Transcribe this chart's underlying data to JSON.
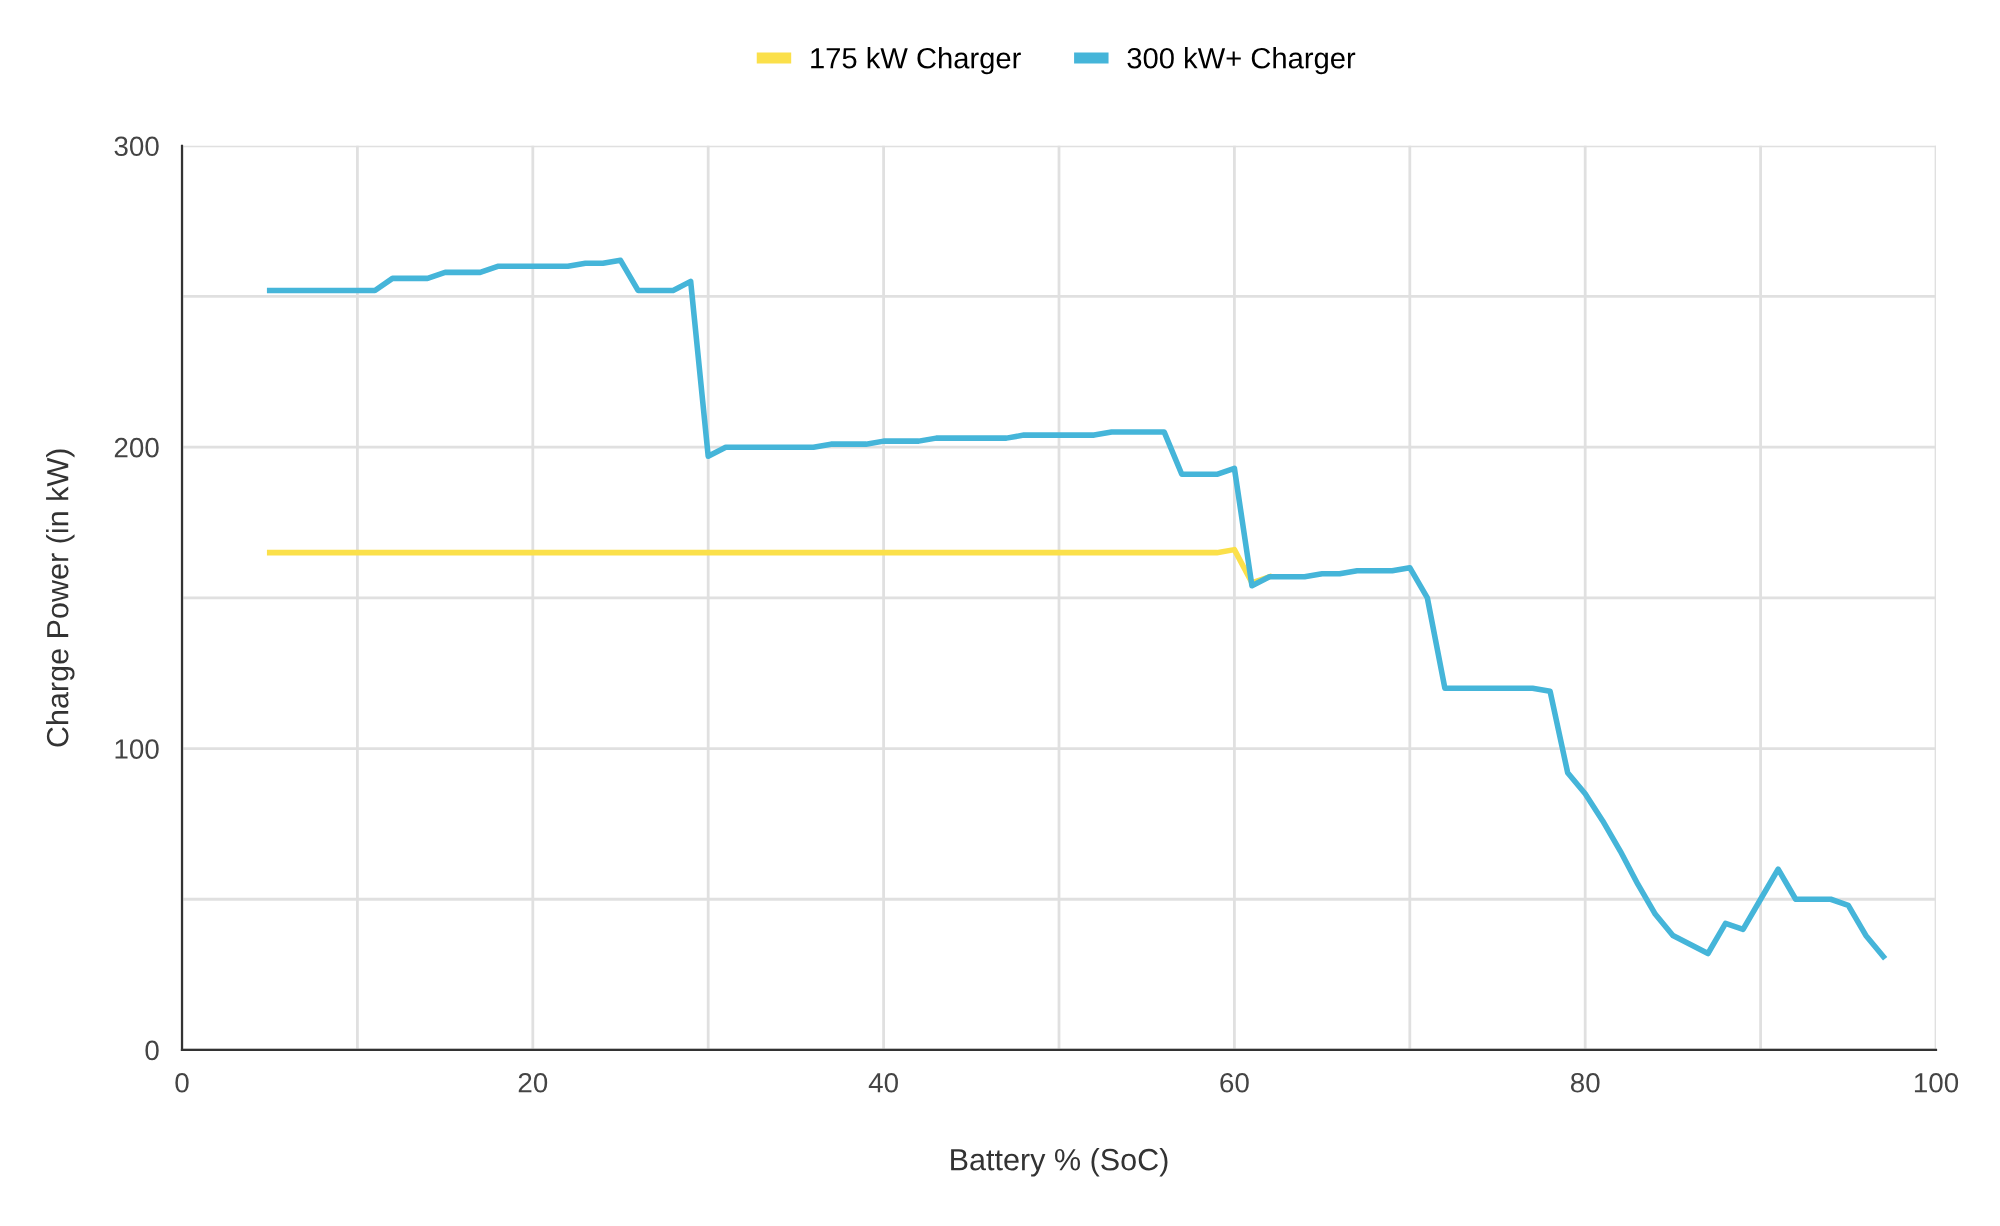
{
  "chart_data": {
    "type": "line",
    "xlabel": "Battery % (SoC)",
    "ylabel": "Charge Power (in kW)",
    "x": [
      5,
      6,
      7,
      8,
      9,
      10,
      11,
      12,
      13,
      14,
      15,
      16,
      17,
      18,
      19,
      20,
      21,
      22,
      23,
      24,
      25,
      26,
      27,
      28,
      29,
      30,
      31,
      32,
      33,
      34,
      35,
      36,
      37,
      38,
      39,
      40,
      41,
      42,
      43,
      44,
      45,
      46,
      47,
      48,
      49,
      50,
      51,
      52,
      53,
      54,
      55,
      56,
      57,
      58,
      59,
      60,
      61,
      62,
      63,
      64,
      65,
      66,
      67,
      68,
      69,
      70,
      71,
      72,
      73,
      74,
      75,
      76,
      77,
      78,
      79,
      80,
      81,
      82,
      83,
      84,
      85,
      86,
      87,
      88,
      89,
      90,
      91,
      92,
      93,
      94,
      95,
      96,
      97
    ],
    "series": [
      {
        "name": "175 kW Charger",
        "color": "#fbe04a",
        "values": [
          165,
          165,
          165,
          165,
          165,
          165,
          165,
          165,
          165,
          165,
          165,
          165,
          165,
          165,
          165,
          165,
          165,
          165,
          165,
          165,
          165,
          165,
          165,
          165,
          165,
          165,
          165,
          165,
          165,
          165,
          165,
          165,
          165,
          165,
          165,
          165,
          165,
          165,
          165,
          165,
          165,
          165,
          165,
          165,
          165,
          165,
          165,
          165,
          165,
          165,
          165,
          165,
          165,
          165,
          165,
          166,
          155,
          157,
          null,
          null,
          null,
          null,
          null,
          null,
          null,
          null,
          null,
          null,
          null,
          null,
          null,
          null,
          null,
          null,
          null,
          null,
          null,
          null,
          null,
          null,
          null,
          null,
          null,
          null,
          null,
          null,
          null,
          null,
          null,
          null,
          null,
          null,
          null
        ]
      },
      {
        "name": "300 kW+ Charger",
        "color": "#45b5d9",
        "values": [
          252,
          252,
          252,
          252,
          252,
          252,
          252,
          256,
          256,
          256,
          258,
          258,
          258,
          260,
          260,
          260,
          260,
          260,
          261,
          261,
          262,
          252,
          252,
          252,
          255,
          197,
          200,
          200,
          200,
          200,
          200,
          200,
          201,
          201,
          201,
          202,
          202,
          202,
          203,
          203,
          203,
          203,
          203,
          204,
          204,
          204,
          204,
          204,
          205,
          205,
          205,
          205,
          191,
          191,
          191,
          193,
          154,
          157,
          157,
          157,
          158,
          158,
          159,
          159,
          159,
          160,
          150,
          120,
          120,
          120,
          120,
          120,
          120,
          119,
          92,
          85,
          76,
          66,
          55,
          45,
          38,
          35,
          32,
          42,
          40,
          50,
          60,
          50,
          50,
          50,
          48,
          38,
          31
        ]
      }
    ],
    "xlim": [
      0,
      100
    ],
    "xticks": [
      0,
      {
        "value": 10,
        "label": null
      },
      20,
      {
        "value": 30,
        "label": null
      },
      40,
      {
        "value": 50,
        "label": null
      },
      60,
      {
        "value": 70,
        "label": null
      },
      80,
      {
        "value": 90,
        "label": null
      },
      100
    ],
    "ylim": [
      0,
      300
    ],
    "yticks": [
      0,
      {
        "value": 50,
        "label": null
      },
      100,
      {
        "value": 150,
        "label": null
      },
      200,
      {
        "value": 250,
        "label": null
      },
      300
    ],
    "grid": true,
    "legend": "top",
    "marker": "none",
    "line_style": "solid"
  }
}
